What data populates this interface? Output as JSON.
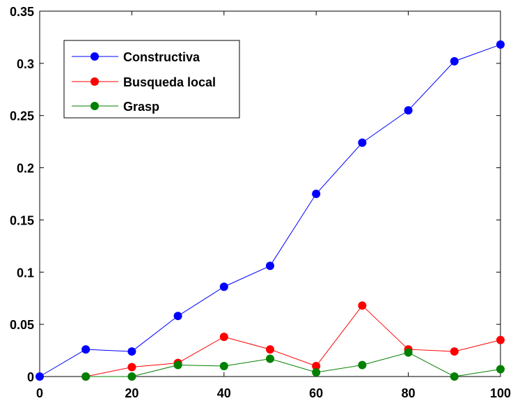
{
  "chart_data": {
    "type": "line",
    "xlim": [
      0,
      100
    ],
    "ylim": [
      0,
      0.35
    ],
    "xticks": [
      0,
      20,
      40,
      60,
      80,
      100
    ],
    "xtick_labels": [
      "0",
      "20",
      "40",
      "60",
      "80",
      "100"
    ],
    "yticks": [
      0,
      0.05,
      0.1,
      0.15,
      0.2,
      0.25,
      0.3,
      0.35
    ],
    "ytick_labels": [
      "0",
      "0.05",
      "0.1",
      "0.15",
      "0.2",
      "0.25",
      "0.3",
      "0.35"
    ],
    "grid": false,
    "legend_position": "top-left",
    "series": [
      {
        "name": "Constructiva",
        "color": "#0000ff",
        "x": [
          0,
          10,
          20,
          30,
          40,
          50,
          60,
          70,
          80,
          90,
          100
        ],
        "y": [
          0.0,
          0.026,
          0.024,
          0.058,
          0.086,
          0.106,
          0.175,
          0.224,
          0.255,
          0.302,
          0.318
        ]
      },
      {
        "name": "Busqueda local",
        "color": "#ff0000",
        "x": [
          10,
          20,
          30,
          40,
          50,
          60,
          70,
          80,
          90,
          100
        ],
        "y": [
          0.0,
          0.009,
          0.013,
          0.038,
          0.026,
          0.01,
          0.068,
          0.026,
          0.024,
          0.035
        ]
      },
      {
        "name": "Grasp",
        "color": "#008000",
        "x": [
          10,
          20,
          30,
          40,
          50,
          60,
          70,
          80,
          90,
          100
        ],
        "y": [
          0.0,
          0.0,
          0.011,
          0.01,
          0.017,
          0.004,
          0.011,
          0.023,
          0.0,
          0.007
        ]
      }
    ]
  }
}
